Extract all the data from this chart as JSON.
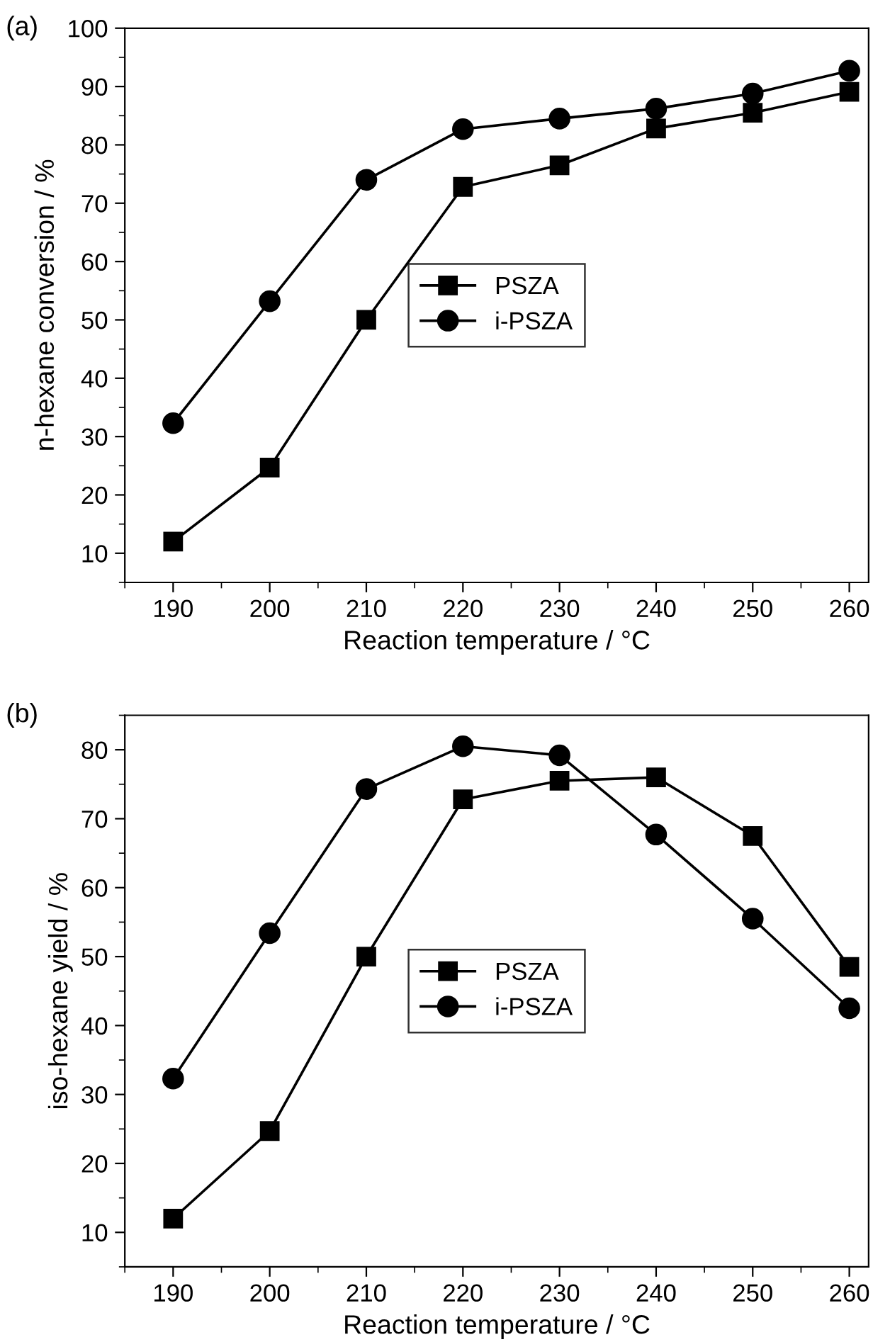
{
  "chart_data": [
    {
      "type": "line",
      "title": "(a)",
      "xlabel": "Reaction temperature / °C",
      "ylabel": "n-hexane conversion / %",
      "x": [
        190,
        200,
        210,
        220,
        230,
        240,
        250,
        260
      ],
      "xlim": [
        185,
        262
      ],
      "xticks": [
        190,
        200,
        210,
        220,
        230,
        240,
        250,
        260
      ],
      "ylim": [
        5,
        100
      ],
      "yticks": [
        10,
        20,
        30,
        40,
        50,
        60,
        70,
        80,
        90,
        100
      ],
      "grid": false,
      "legend": "center",
      "series": [
        {
          "name": "PSZA",
          "color": "#000000",
          "marker": "square",
          "values": [
            12,
            24.7,
            50,
            72.8,
            76.5,
            82.8,
            85.5,
            89.1
          ]
        },
        {
          "name": "i-PSZA",
          "color": "#000000",
          "marker": "circle",
          "values": [
            32.3,
            53.2,
            74,
            82.7,
            84.5,
            86.2,
            88.8,
            92.7
          ]
        }
      ]
    },
    {
      "type": "line",
      "title": "(b)",
      "xlabel": "Reaction temperature / °C",
      "ylabel": "iso-hexane yield / %",
      "x": [
        190,
        200,
        210,
        220,
        230,
        240,
        250,
        260
      ],
      "xlim": [
        185,
        262
      ],
      "xticks": [
        190,
        200,
        210,
        220,
        230,
        240,
        250,
        260
      ],
      "ylim": [
        5,
        85
      ],
      "yticks": [
        10,
        20,
        30,
        40,
        50,
        60,
        70,
        80
      ],
      "grid": false,
      "legend": "center",
      "series": [
        {
          "name": "PSZA",
          "color": "#000000",
          "marker": "square",
          "values": [
            12,
            24.7,
            50,
            72.8,
            75.5,
            76,
            67.5,
            48.5
          ]
        },
        {
          "name": "i-PSZA",
          "color": "#000000",
          "marker": "circle",
          "values": [
            32.3,
            53.4,
            74.3,
            80.5,
            79.2,
            67.7,
            55.5,
            42.5
          ]
        }
      ]
    }
  ]
}
